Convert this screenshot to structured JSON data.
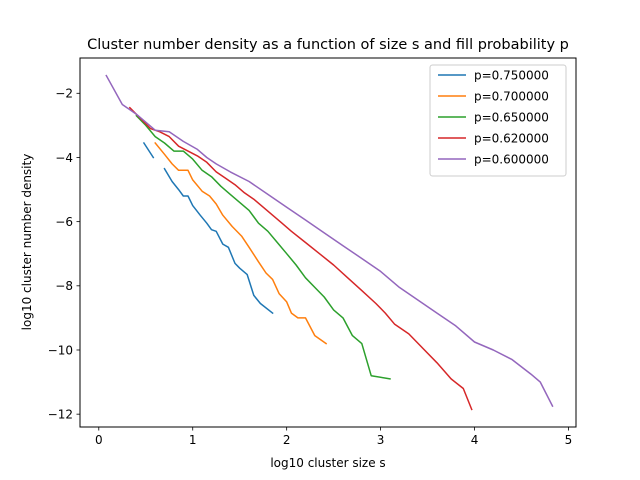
{
  "chart_data": {
    "type": "line",
    "title": "Cluster number density as a function of size s and fill probability p",
    "xlabel": "log10 cluster size s",
    "ylabel": "log10 cluster number density",
    "xlim": [
      -0.2,
      5.08
    ],
    "ylim": [
      -12.4,
      -0.9
    ],
    "xticks": [
      0,
      1,
      2,
      3,
      4,
      5
    ],
    "xtick_labels": [
      "0",
      "1",
      "2",
      "3",
      "4",
      "5"
    ],
    "yticks": [
      -12,
      -10,
      -8,
      -6,
      -4,
      -2
    ],
    "ytick_labels": [
      "−12",
      "−10",
      "−8",
      "−6",
      "−4",
      "−2"
    ],
    "grid": false,
    "legend_position": "top-right",
    "series": [
      {
        "name": "p=0.750000",
        "color": "#1f77b4",
        "segments": [
          [
            [
              0.48,
              -3.55
            ],
            [
              0.58,
              -4.0
            ]
          ],
          [
            [
              0.7,
              -4.35
            ],
            [
              0.78,
              -4.75
            ],
            [
              0.85,
              -5.0
            ],
            [
              0.9,
              -5.2
            ],
            [
              0.95,
              -5.2
            ],
            [
              1.0,
              -5.5
            ],
            [
              1.08,
              -5.8
            ],
            [
              1.15,
              -6.05
            ],
            [
              1.2,
              -6.25
            ],
            [
              1.25,
              -6.3
            ],
            [
              1.32,
              -6.7
            ],
            [
              1.38,
              -6.8
            ],
            [
              1.45,
              -7.3
            ],
            [
              1.5,
              -7.45
            ],
            [
              1.58,
              -7.65
            ],
            [
              1.65,
              -8.3
            ],
            [
              1.72,
              -8.55
            ],
            [
              1.85,
              -8.85
            ]
          ]
        ]
      },
      {
        "name": "p=0.700000",
        "color": "#ff7f0e",
        "segments": [
          [
            [
              0.6,
              -3.55
            ],
            [
              0.7,
              -3.9
            ],
            [
              0.78,
              -4.2
            ],
            [
              0.85,
              -4.4
            ],
            [
              0.95,
              -4.4
            ],
            [
              1.0,
              -4.7
            ],
            [
              1.1,
              -5.05
            ],
            [
              1.18,
              -5.2
            ],
            [
              1.25,
              -5.45
            ],
            [
              1.32,
              -5.8
            ],
            [
              1.42,
              -6.15
            ],
            [
              1.52,
              -6.45
            ],
            [
              1.6,
              -6.8
            ],
            [
              1.7,
              -7.25
            ],
            [
              1.78,
              -7.6
            ],
            [
              1.85,
              -7.8
            ],
            [
              1.92,
              -8.25
            ],
            [
              2.0,
              -8.5
            ],
            [
              2.05,
              -8.85
            ],
            [
              2.12,
              -9.0
            ],
            [
              2.2,
              -9.0
            ],
            [
              2.3,
              -9.55
            ],
            [
              2.42,
              -9.8
            ]
          ]
        ]
      },
      {
        "name": "p=0.650000",
        "color": "#2ca02c",
        "segments": [
          [
            [
              0.4,
              -2.7
            ],
            [
              0.5,
              -3.0
            ],
            [
              0.6,
              -3.35
            ],
            [
              0.7,
              -3.55
            ],
            [
              0.8,
              -3.8
            ],
            [
              0.9,
              -3.8
            ],
            [
              1.0,
              -4.05
            ],
            [
              1.1,
              -4.4
            ],
            [
              1.2,
              -4.6
            ],
            [
              1.3,
              -4.9
            ],
            [
              1.4,
              -5.15
            ],
            [
              1.5,
              -5.4
            ],
            [
              1.6,
              -5.65
            ],
            [
              1.7,
              -6.05
            ],
            [
              1.8,
              -6.3
            ],
            [
              1.9,
              -6.65
            ],
            [
              2.0,
              -7.0
            ],
            [
              2.1,
              -7.35
            ],
            [
              2.2,
              -7.75
            ],
            [
              2.3,
              -8.05
            ],
            [
              2.4,
              -8.35
            ],
            [
              2.5,
              -8.75
            ],
            [
              2.6,
              -9.0
            ],
            [
              2.7,
              -9.55
            ],
            [
              2.8,
              -9.8
            ],
            [
              2.9,
              -10.8
            ],
            [
              3.1,
              -10.9
            ]
          ]
        ]
      },
      {
        "name": "p=0.620000",
        "color": "#d62728",
        "segments": [
          [
            [
              0.33,
              -2.45
            ],
            [
              0.45,
              -2.8
            ],
            [
              0.55,
              -3.1
            ],
            [
              0.65,
              -3.2
            ],
            [
              0.75,
              -3.35
            ],
            [
              0.85,
              -3.65
            ],
            [
              0.95,
              -3.8
            ],
            [
              1.05,
              -3.95
            ],
            [
              1.15,
              -4.15
            ],
            [
              1.25,
              -4.45
            ],
            [
              1.35,
              -4.65
            ],
            [
              1.45,
              -4.85
            ],
            [
              1.55,
              -5.1
            ],
            [
              1.65,
              -5.3
            ],
            [
              1.75,
              -5.55
            ],
            [
              1.85,
              -5.8
            ],
            [
              1.95,
              -6.05
            ],
            [
              2.05,
              -6.3
            ],
            [
              2.2,
              -6.65
            ],
            [
              2.35,
              -7.0
            ],
            [
              2.5,
              -7.35
            ],
            [
              2.65,
              -7.75
            ],
            [
              2.8,
              -8.15
            ],
            [
              2.95,
              -8.55
            ],
            [
              3.05,
              -8.85
            ],
            [
              3.15,
              -9.2
            ],
            [
              3.3,
              -9.5
            ],
            [
              3.45,
              -9.95
            ],
            [
              3.6,
              -10.4
            ],
            [
              3.75,
              -10.9
            ],
            [
              3.88,
              -11.2
            ],
            [
              3.97,
              -11.85
            ]
          ]
        ]
      },
      {
        "name": "p=0.600000",
        "color": "#9467bd",
        "segments": [
          [
            [
              0.08,
              -1.45
            ],
            [
              0.25,
              -2.35
            ],
            [
              0.4,
              -2.65
            ],
            [
              0.5,
              -2.9
            ],
            [
              0.6,
              -3.15
            ],
            [
              0.75,
              -3.2
            ],
            [
              0.9,
              -3.5
            ],
            [
              1.05,
              -3.75
            ],
            [
              1.15,
              -4.0
            ],
            [
              1.25,
              -4.2
            ],
            [
              1.4,
              -4.45
            ],
            [
              1.6,
              -4.75
            ],
            [
              1.8,
              -5.15
            ],
            [
              2.0,
              -5.55
            ],
            [
              2.2,
              -5.95
            ],
            [
              2.4,
              -6.35
            ],
            [
              2.6,
              -6.75
            ],
            [
              2.8,
              -7.15
            ],
            [
              3.0,
              -7.55
            ],
            [
              3.1,
              -7.8
            ],
            [
              3.2,
              -8.05
            ],
            [
              3.4,
              -8.45
            ],
            [
              3.6,
              -8.85
            ],
            [
              3.8,
              -9.25
            ],
            [
              4.0,
              -9.75
            ],
            [
              4.2,
              -10.0
            ],
            [
              4.4,
              -10.3
            ],
            [
              4.6,
              -10.75
            ],
            [
              4.7,
              -11.0
            ],
            [
              4.83,
              -11.75
            ]
          ]
        ]
      }
    ]
  }
}
